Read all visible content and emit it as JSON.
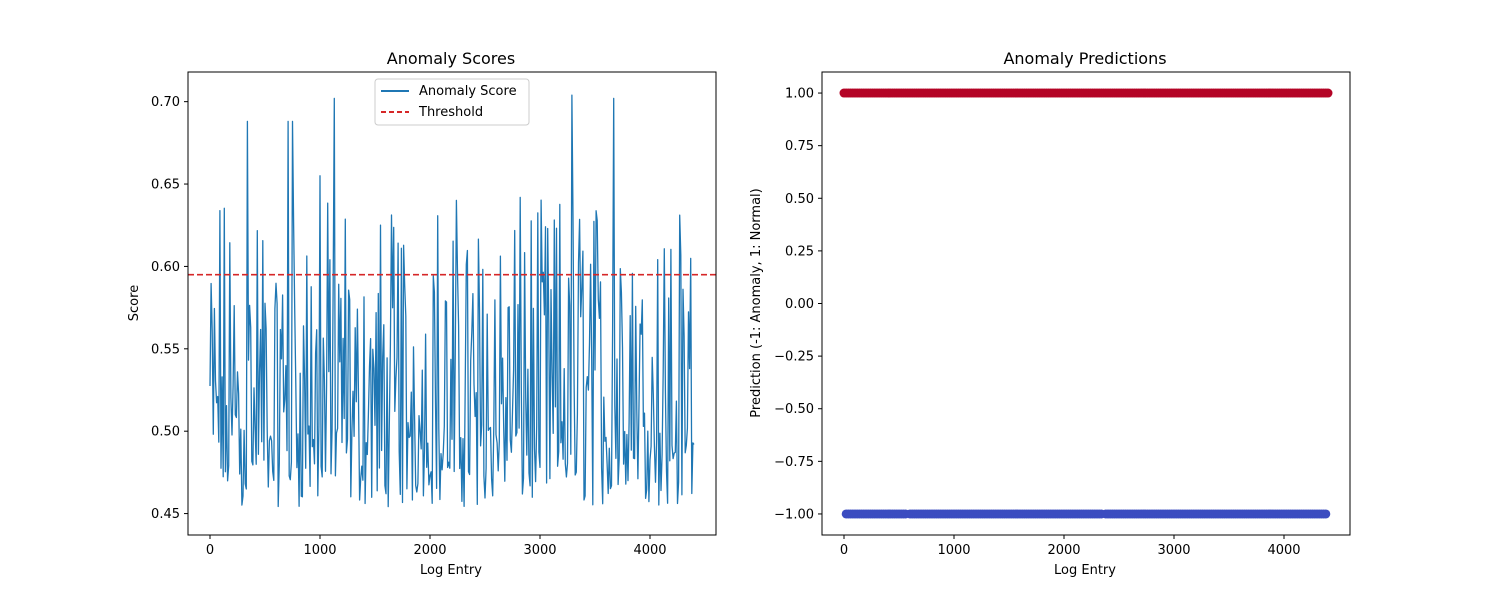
{
  "chart_data": [
    {
      "type": "line",
      "title": "Anomaly Scores",
      "xlabel": "Log Entry",
      "ylabel": "Score",
      "xlim": [
        -200,
        4600
      ],
      "ylim": [
        0.437,
        0.718
      ],
      "xticks": [
        0,
        1000,
        2000,
        3000,
        4000
      ],
      "yticks": [
        0.45,
        0.5,
        0.55,
        0.6,
        0.65,
        0.7
      ],
      "ytick_labels": [
        "0.45",
        "0.50",
        "0.55",
        "0.60",
        "0.65",
        "0.70"
      ],
      "x_range": [
        0,
        4400
      ],
      "score_range": [
        0.449,
        0.704
      ],
      "series": [
        {
          "name": "Anomaly Score",
          "color": "#1f77b4",
          "style": "solid"
        },
        {
          "name": "Threshold",
          "color": "#d62728",
          "style": "dashed",
          "value": 0.595
        }
      ],
      "peaks": [
        {
          "x": 340,
          "y": 0.688
        },
        {
          "x": 710,
          "y": 0.688
        },
        {
          "x": 750,
          "y": 0.688
        },
        {
          "x": 1000,
          "y": 0.655
        },
        {
          "x": 1130,
          "y": 0.702
        },
        {
          "x": 3290,
          "y": 0.704
        },
        {
          "x": 3670,
          "y": 0.702
        }
      ],
      "legend": "upper center",
      "grid": false
    },
    {
      "type": "scatter",
      "title": "Anomaly Predictions",
      "xlabel": "Log Entry",
      "ylabel": "Prediction (-1: Anomaly, 1: Normal)",
      "xlim": [
        -200,
        4600
      ],
      "ylim": [
        -1.1,
        1.1
      ],
      "xticks": [
        0,
        1000,
        2000,
        3000,
        4000
      ],
      "yticks": [
        -1.0,
        -0.75,
        -0.5,
        -0.25,
        0.0,
        0.25,
        0.5,
        0.75,
        1.0
      ],
      "ytick_labels": [
        "−1.00",
        "−0.75",
        "−0.50",
        "−0.25",
        "0.00",
        "0.25",
        "0.50",
        "0.75",
        "1.00"
      ],
      "series": [
        {
          "value": 1,
          "color": "#b40426",
          "x_range": [
            0,
            4400
          ]
        },
        {
          "value": -1,
          "color": "#3b4cc0",
          "x_segments": [
            [
              20,
              240
            ],
            [
              260,
              560
            ],
            [
              600,
              820
            ],
            [
              840,
              1870
            ],
            [
              1880,
              2340
            ],
            [
              2380,
              3820
            ],
            [
              3840,
              4380
            ]
          ]
        }
      ],
      "grid": false
    }
  ]
}
